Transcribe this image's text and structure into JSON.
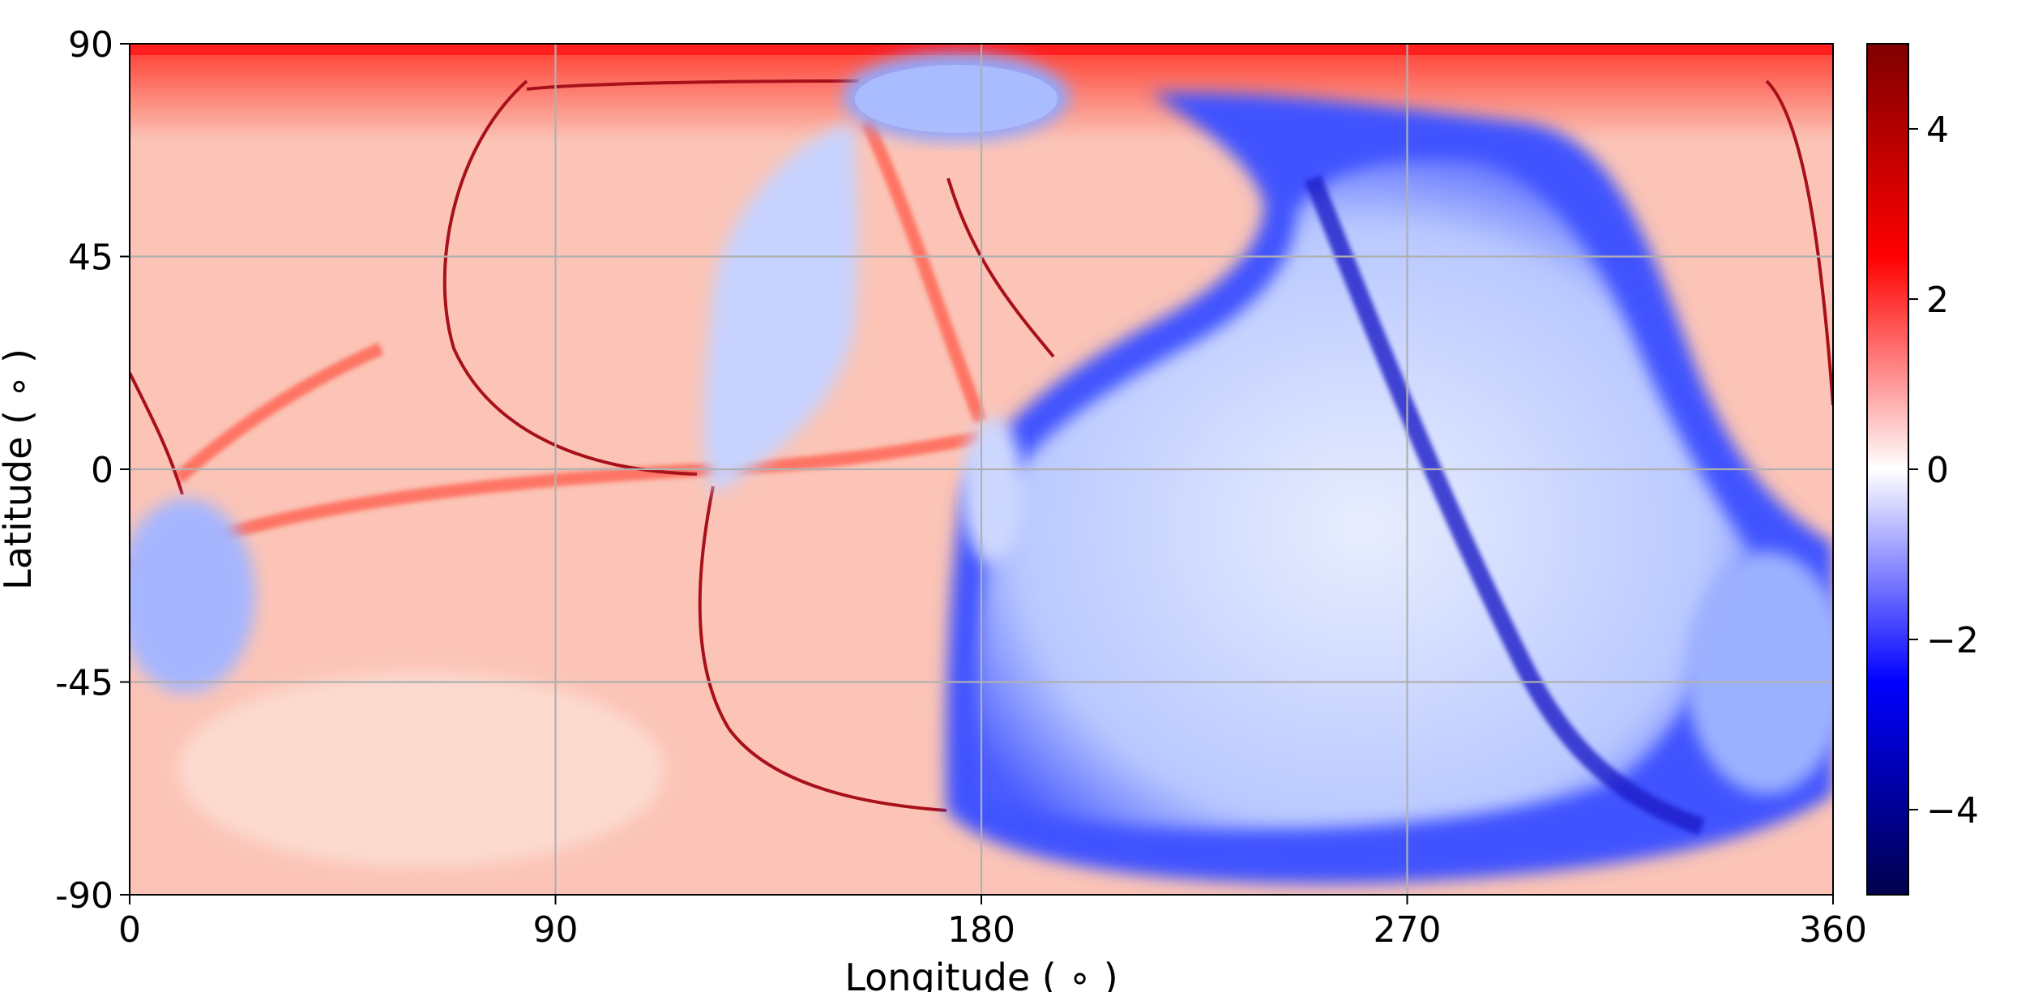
{
  "chart_data": {
    "type": "heatmap",
    "title": "",
    "xlabel": "Longitude ( ∘ )",
    "ylabel": "Latitude ( ∘ )",
    "xlim": [
      0,
      360
    ],
    "ylim": [
      -90,
      90
    ],
    "xticks": [
      0,
      90,
      180,
      270,
      360
    ],
    "xtick_labels": [
      "0",
      "90",
      "180",
      "270",
      "360"
    ],
    "yticks": [
      90,
      45,
      0,
      -45,
      -90
    ],
    "ytick_labels": [
      "90",
      "45",
      "0",
      "-45",
      "-90"
    ],
    "grid": true,
    "colormap": "seismic",
    "colorbar": {
      "range": [
        -5,
        5
      ],
      "ticks": [
        4,
        2,
        0,
        -2,
        -4
      ],
      "tick_labels": [
        "4",
        "2",
        "0",
        "−2",
        "−4"
      ]
    }
  }
}
